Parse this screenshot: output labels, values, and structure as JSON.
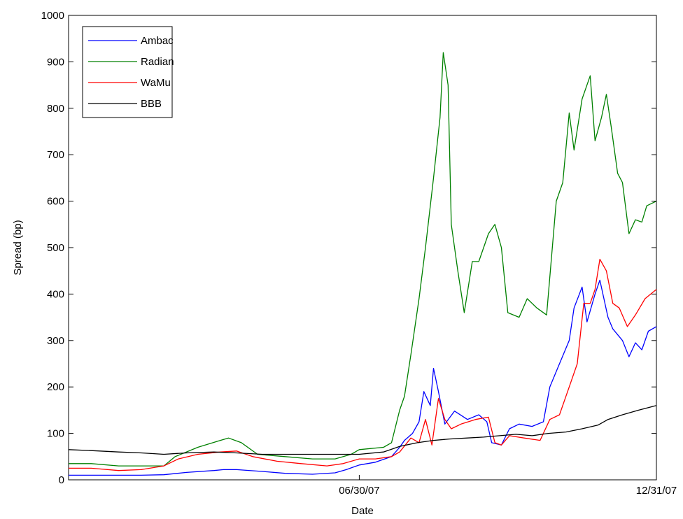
{
  "chart_data": {
    "type": "line",
    "xlabel": "Date",
    "ylabel": "Spread (bp)",
    "ylim": [
      0,
      1000
    ],
    "yticks": [
      0,
      100,
      200,
      300,
      400,
      500,
      600,
      700,
      800,
      900,
      1000
    ],
    "xlim": [
      "01/01/07",
      "12/31/07"
    ],
    "xticks": [
      {
        "label": "06/30/07",
        "date": "06/30/07"
      },
      {
        "label": "12/31/07",
        "date": "12/31/07"
      }
    ],
    "legend_position": "top-left",
    "grid": false,
    "series": [
      {
        "name": "Ambac",
        "color": "#0000ff",
        "points": [
          [
            "01/01/07",
            10
          ],
          [
            "01/15/07",
            10
          ],
          [
            "02/01/07",
            10
          ],
          [
            "02/15/07",
            10
          ],
          [
            "03/01/07",
            11
          ],
          [
            "03/15/07",
            16
          ],
          [
            "04/01/07",
            20
          ],
          [
            "04/07/07",
            22
          ],
          [
            "04/15/07",
            22
          ],
          [
            "05/01/07",
            18
          ],
          [
            "05/15/07",
            14
          ],
          [
            "06/01/07",
            12
          ],
          [
            "06/15/07",
            15
          ],
          [
            "06/22/07",
            22
          ],
          [
            "06/30/07",
            32
          ],
          [
            "07/10/07",
            38
          ],
          [
            "07/20/07",
            50
          ],
          [
            "07/25/07",
            70
          ],
          [
            "07/28/07",
            85
          ],
          [
            "08/02/07",
            100
          ],
          [
            "08/06/07",
            125
          ],
          [
            "08/09/07",
            190
          ],
          [
            "08/13/07",
            160
          ],
          [
            "08/15/07",
            240
          ],
          [
            "08/18/07",
            190
          ],
          [
            "08/22/07",
            120
          ],
          [
            "08/28/07",
            148
          ],
          [
            "09/05/07",
            130
          ],
          [
            "09/12/07",
            140
          ],
          [
            "09/17/07",
            125
          ],
          [
            "09/20/07",
            80
          ],
          [
            "09/26/07",
            75
          ],
          [
            "10/01/07",
            110
          ],
          [
            "10/07/07",
            120
          ],
          [
            "10/15/07",
            115
          ],
          [
            "10/22/07",
            125
          ],
          [
            "10/26/07",
            200
          ],
          [
            "11/01/07",
            250
          ],
          [
            "11/07/07",
            300
          ],
          [
            "11/10/07",
            370
          ],
          [
            "11/15/07",
            415
          ],
          [
            "11/18/07",
            340
          ],
          [
            "11/23/07",
            400
          ],
          [
            "11/26/07",
            430
          ],
          [
            "12/01/07",
            350
          ],
          [
            "12/04/07",
            325
          ],
          [
            "12/10/07",
            300
          ],
          [
            "12/14/07",
            265
          ],
          [
            "12/18/07",
            295
          ],
          [
            "12/22/07",
            280
          ],
          [
            "12/26/07",
            320
          ],
          [
            "12/31/07",
            330
          ]
        ]
      },
      {
        "name": "Radian",
        "color": "#008000",
        "points": [
          [
            "01/01/07",
            35
          ],
          [
            "01/15/07",
            35
          ],
          [
            "02/01/07",
            30
          ],
          [
            "02/15/07",
            30
          ],
          [
            "03/01/07",
            30
          ],
          [
            "03/08/07",
            50
          ],
          [
            "03/22/07",
            70
          ],
          [
            "04/05/07",
            85
          ],
          [
            "04/10/07",
            90
          ],
          [
            "04/18/07",
            80
          ],
          [
            "04/28/07",
            55
          ],
          [
            "05/15/07",
            50
          ],
          [
            "06/01/07",
            45
          ],
          [
            "06/15/07",
            45
          ],
          [
            "06/25/07",
            55
          ],
          [
            "06/30/07",
            65
          ],
          [
            "07/15/07",
            70
          ],
          [
            "07/20/07",
            80
          ],
          [
            "07/25/07",
            150
          ],
          [
            "07/28/07",
            180
          ],
          [
            "08/01/07",
            270
          ],
          [
            "08/06/07",
            390
          ],
          [
            "08/10/07",
            500
          ],
          [
            "08/15/07",
            650
          ],
          [
            "08/19/07",
            780
          ],
          [
            "08/21/07",
            920
          ],
          [
            "08/24/07",
            850
          ],
          [
            "08/26/07",
            550
          ],
          [
            "08/30/07",
            450
          ],
          [
            "09/03/07",
            360
          ],
          [
            "09/08/07",
            470
          ],
          [
            "09/12/07",
            470
          ],
          [
            "09/18/07",
            530
          ],
          [
            "09/22/07",
            550
          ],
          [
            "09/26/07",
            500
          ],
          [
            "09/30/07",
            360
          ],
          [
            "10/07/07",
            350
          ],
          [
            "10/12/07",
            390
          ],
          [
            "10/18/07",
            370
          ],
          [
            "10/24/07",
            355
          ],
          [
            "10/30/07",
            600
          ],
          [
            "11/03/07",
            640
          ],
          [
            "11/07/07",
            790
          ],
          [
            "11/10/07",
            710
          ],
          [
            "11/15/07",
            820
          ],
          [
            "11/20/07",
            870
          ],
          [
            "11/23/07",
            730
          ],
          [
            "11/27/07",
            780
          ],
          [
            "11/30/07",
            830
          ],
          [
            "12/03/07",
            760
          ],
          [
            "12/07/07",
            660
          ],
          [
            "12/10/07",
            640
          ],
          [
            "12/14/07",
            530
          ],
          [
            "12/18/07",
            560
          ],
          [
            "12/22/07",
            555
          ],
          [
            "12/25/07",
            590
          ],
          [
            "12/31/07",
            600
          ]
        ]
      },
      {
        "name": "WaMu",
        "color": "#ff0000",
        "points": [
          [
            "01/01/07",
            25
          ],
          [
            "01/15/07",
            25
          ],
          [
            "02/01/07",
            20
          ],
          [
            "02/15/07",
            22
          ],
          [
            "03/01/07",
            30
          ],
          [
            "03/10/07",
            45
          ],
          [
            "03/22/07",
            55
          ],
          [
            "04/05/07",
            60
          ],
          [
            "04/15/07",
            62
          ],
          [
            "04/25/07",
            50
          ],
          [
            "05/10/07",
            40
          ],
          [
            "05/25/07",
            35
          ],
          [
            "06/10/07",
            30
          ],
          [
            "06/20/07",
            35
          ],
          [
            "06/30/07",
            45
          ],
          [
            "07/10/07",
            45
          ],
          [
            "07/20/07",
            50
          ],
          [
            "07/25/07",
            60
          ],
          [
            "08/01/07",
            90
          ],
          [
            "08/06/07",
            80
          ],
          [
            "08/10/07",
            130
          ],
          [
            "08/14/07",
            75
          ],
          [
            "08/18/07",
            175
          ],
          [
            "08/22/07",
            130
          ],
          [
            "08/26/07",
            110
          ],
          [
            "09/01/07",
            120
          ],
          [
            "09/10/07",
            130
          ],
          [
            "09/18/07",
            135
          ],
          [
            "09/22/07",
            80
          ],
          [
            "09/26/07",
            75
          ],
          [
            "10/01/07",
            95
          ],
          [
            "10/10/07",
            90
          ],
          [
            "10/20/07",
            85
          ],
          [
            "10/26/07",
            130
          ],
          [
            "11/01/07",
            140
          ],
          [
            "11/07/07",
            200
          ],
          [
            "11/12/07",
            250
          ],
          [
            "11/16/07",
            380
          ],
          [
            "11/20/07",
            380
          ],
          [
            "11/23/07",
            410
          ],
          [
            "11/26/07",
            475
          ],
          [
            "11/30/07",
            450
          ],
          [
            "12/04/07",
            380
          ],
          [
            "12/08/07",
            370
          ],
          [
            "12/13/07",
            330
          ],
          [
            "12/18/07",
            355
          ],
          [
            "12/24/07",
            390
          ],
          [
            "12/31/07",
            410
          ]
        ]
      },
      {
        "name": "BBB",
        "color": "#000000",
        "points": [
          [
            "01/01/07",
            65
          ],
          [
            "01/15/07",
            63
          ],
          [
            "02/01/07",
            60
          ],
          [
            "02/15/07",
            58
          ],
          [
            "03/01/07",
            55
          ],
          [
            "03/15/07",
            58
          ],
          [
            "04/01/07",
            60
          ],
          [
            "04/15/07",
            58
          ],
          [
            "05/01/07",
            55
          ],
          [
            "05/15/07",
            55
          ],
          [
            "06/01/07",
            55
          ],
          [
            "06/15/07",
            55
          ],
          [
            "06/30/07",
            55
          ],
          [
            "07/15/07",
            60
          ],
          [
            "07/25/07",
            72
          ],
          [
            "08/05/07",
            80
          ],
          [
            "08/15/07",
            85
          ],
          [
            "08/25/07",
            88
          ],
          [
            "09/05/07",
            90
          ],
          [
            "09/15/07",
            92
          ],
          [
            "09/25/07",
            95
          ],
          [
            "10/05/07",
            98
          ],
          [
            "10/15/07",
            95
          ],
          [
            "10/25/07",
            100
          ],
          [
            "11/05/07",
            103
          ],
          [
            "11/15/07",
            110
          ],
          [
            "11/25/07",
            118
          ],
          [
            "12/01/07",
            130
          ],
          [
            "12/10/07",
            140
          ],
          [
            "12/20/07",
            150
          ],
          [
            "12/31/07",
            160
          ]
        ]
      }
    ]
  }
}
